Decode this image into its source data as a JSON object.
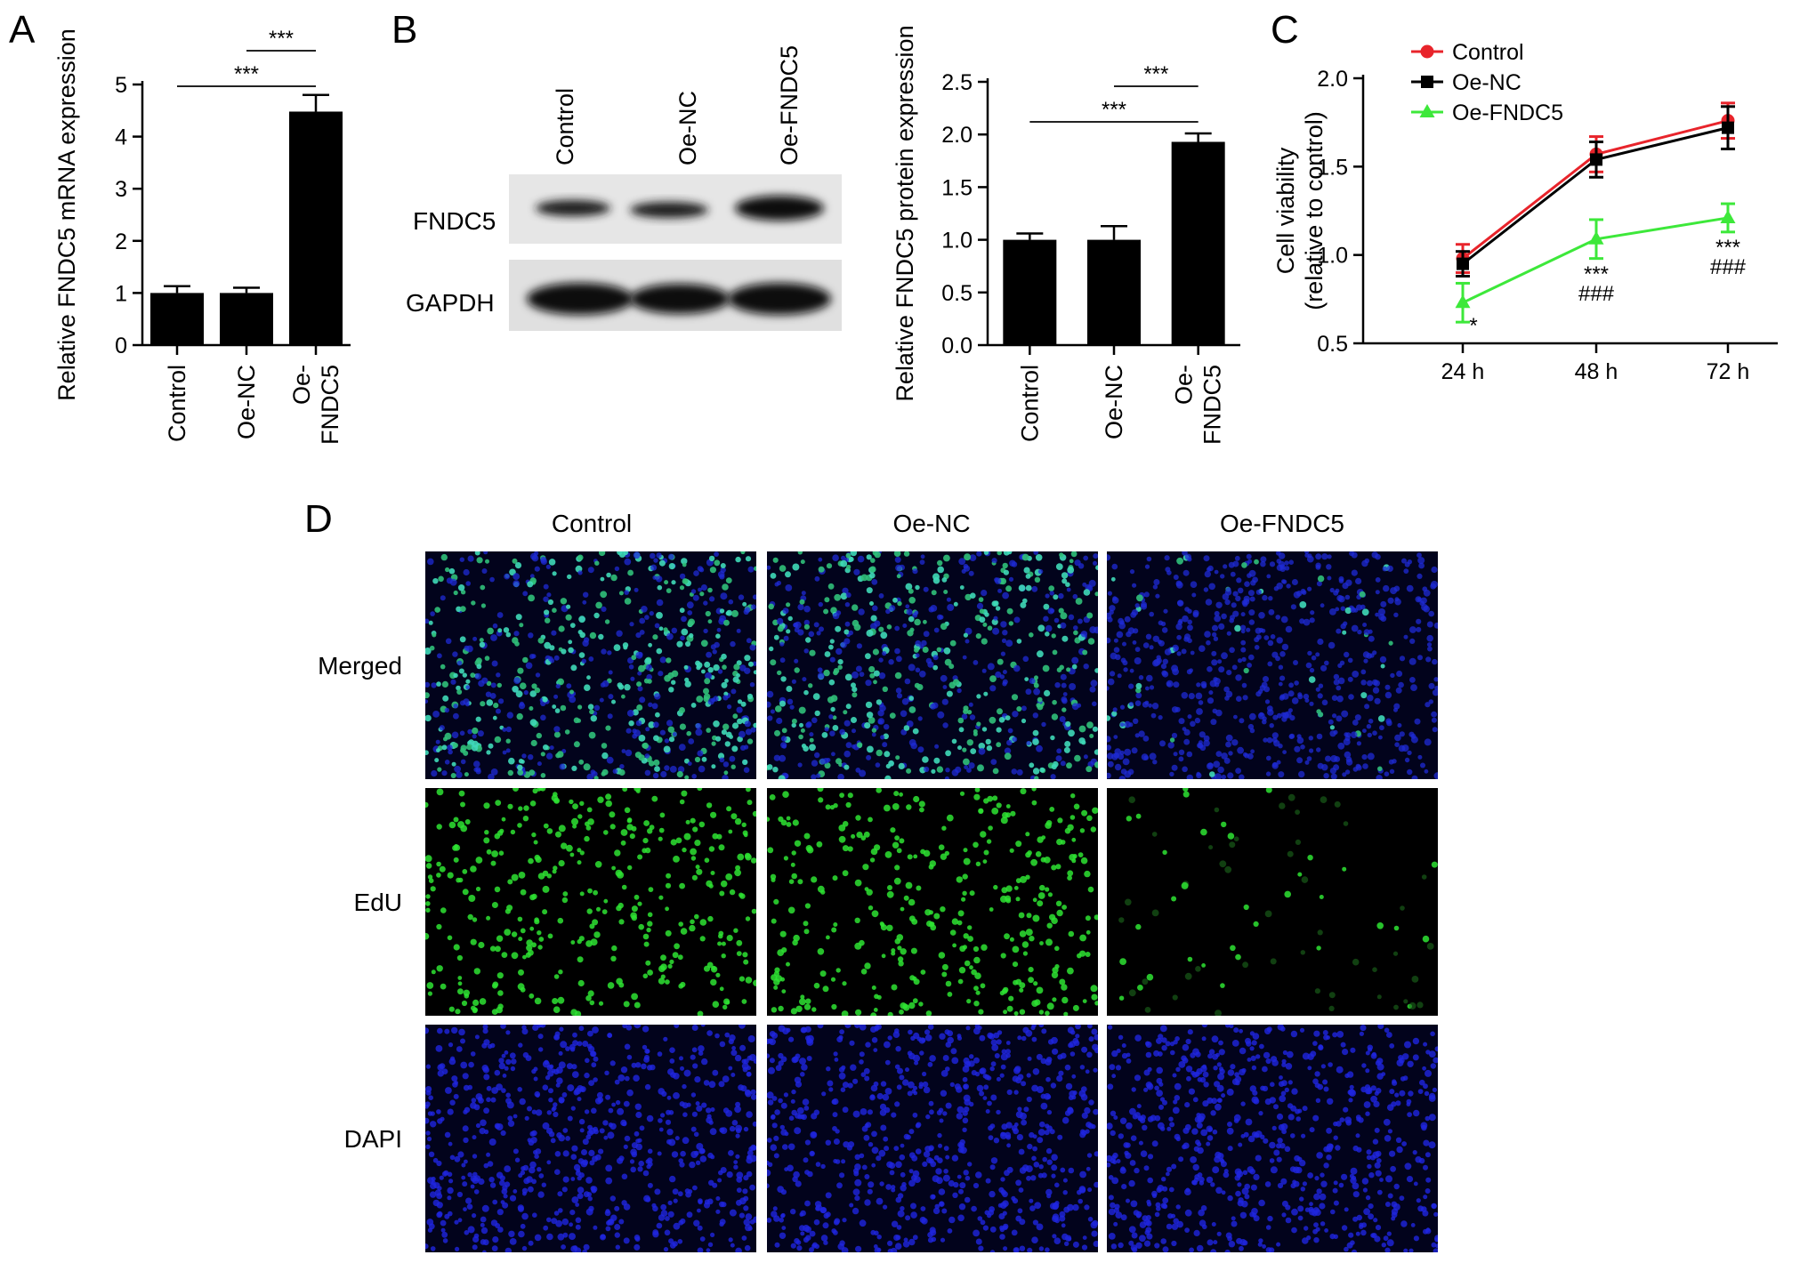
{
  "panels": {
    "A": {
      "letter": "A"
    },
    "B": {
      "letter": "B",
      "blot_columns": [
        "Control",
        "Oe-NC",
        "Oe-FNDC5"
      ],
      "blot_rows": [
        "FNDC5",
        "GAPDH"
      ]
    },
    "C": {
      "letter": "C"
    },
    "D": {
      "letter": "D",
      "columns": [
        "Control",
        "Oe-NC",
        "Oe-FNDC5"
      ],
      "rows": [
        "Merged",
        "EdU",
        "DAPI"
      ]
    }
  },
  "chart_data": [
    {
      "panel": "A",
      "type": "bar",
      "categories": [
        "Control",
        "Oe-NC",
        "Oe-\nFNDC5"
      ],
      "values": [
        1.0,
        1.0,
        4.48
      ],
      "errors": [
        0.13,
        0.1,
        0.32
      ],
      "ylabel": "Relative FNDC5 mRNA expression",
      "ylim": [
        0,
        5
      ],
      "yticks": [
        "0",
        "1",
        "2",
        "3",
        "4",
        "5"
      ],
      "bar_color": "#000000",
      "significance": [
        {
          "from": 0,
          "to": 2,
          "label": "***"
        },
        {
          "from": 1,
          "to": 2,
          "label": "***"
        }
      ]
    },
    {
      "panel": "B",
      "type": "bar",
      "categories": [
        "Control",
        "Oe-NC",
        "Oe-\nFNDC5"
      ],
      "values": [
        1.0,
        1.0,
        1.93
      ],
      "errors": [
        0.06,
        0.13,
        0.08
      ],
      "ylabel": "Relative FNDC5 protein expression",
      "ylim": [
        0,
        2.5
      ],
      "yticks": [
        "0.0",
        "0.5",
        "1.0",
        "1.5",
        "2.0",
        "2.5"
      ],
      "bar_color": "#000000",
      "significance": [
        {
          "from": 0,
          "to": 2,
          "label": "***"
        },
        {
          "from": 1,
          "to": 2,
          "label": "***"
        }
      ]
    },
    {
      "panel": "C",
      "type": "line",
      "x": [
        "24 h",
        "48 h",
        "72 h"
      ],
      "ylabel": "Cell viability\n(relative to control)",
      "ylim": [
        0.5,
        2.0
      ],
      "yticks": [
        "0.5",
        "1.0",
        "1.5",
        "2.0"
      ],
      "legend_position": "top-left",
      "series": [
        {
          "name": "Control",
          "values": [
            0.98,
            1.57,
            1.76
          ],
          "errors": [
            0.08,
            0.1,
            0.1
          ],
          "color": "#e8242b",
          "marker": "circle"
        },
        {
          "name": "Oe-NC",
          "values": [
            0.95,
            1.54,
            1.72
          ],
          "errors": [
            0.07,
            0.1,
            0.12
          ],
          "color": "#000000",
          "marker": "square"
        },
        {
          "name": "Oe-FNDC5",
          "values": [
            0.73,
            1.09,
            1.21
          ],
          "errors": [
            0.11,
            0.11,
            0.08
          ],
          "color": "#3de83a",
          "marker": "triangle"
        }
      ],
      "annotations": [
        {
          "x": "24 h",
          "text": "*"
        },
        {
          "x": "48 h",
          "text": "***"
        },
        {
          "x": "48 h",
          "text": "###"
        },
        {
          "x": "72 h",
          "text": "***"
        },
        {
          "x": "72 h",
          "text": "###"
        }
      ]
    }
  ]
}
